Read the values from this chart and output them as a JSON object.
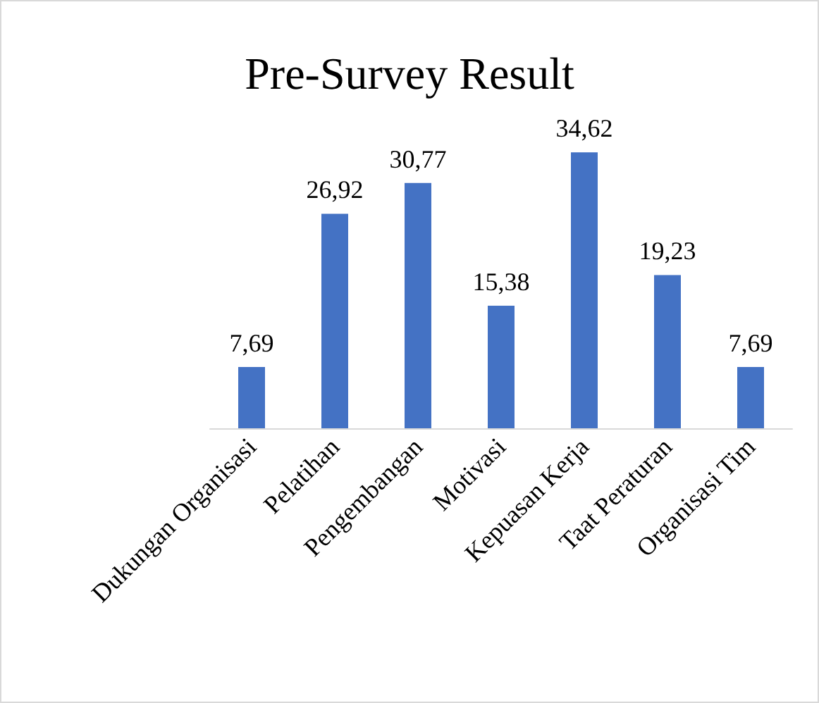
{
  "chart_data": {
    "type": "bar",
    "title": "Pre-Survey Result",
    "categories": [
      "Dukungan Organisasi",
      "Pelatihan",
      "Pengembangan",
      "Motivasi",
      "Kepuasan Kerja",
      "Taat Peraturan",
      "Organisasi Tim"
    ],
    "values": [
      7.69,
      26.92,
      30.77,
      15.38,
      34.62,
      19.23,
      7.69
    ],
    "value_labels": [
      "7,69",
      "26,92",
      "30,77",
      "15,38",
      "34,62",
      "19,23",
      "7,69"
    ],
    "color": "#4472c4",
    "tick_labels": "x"
  }
}
